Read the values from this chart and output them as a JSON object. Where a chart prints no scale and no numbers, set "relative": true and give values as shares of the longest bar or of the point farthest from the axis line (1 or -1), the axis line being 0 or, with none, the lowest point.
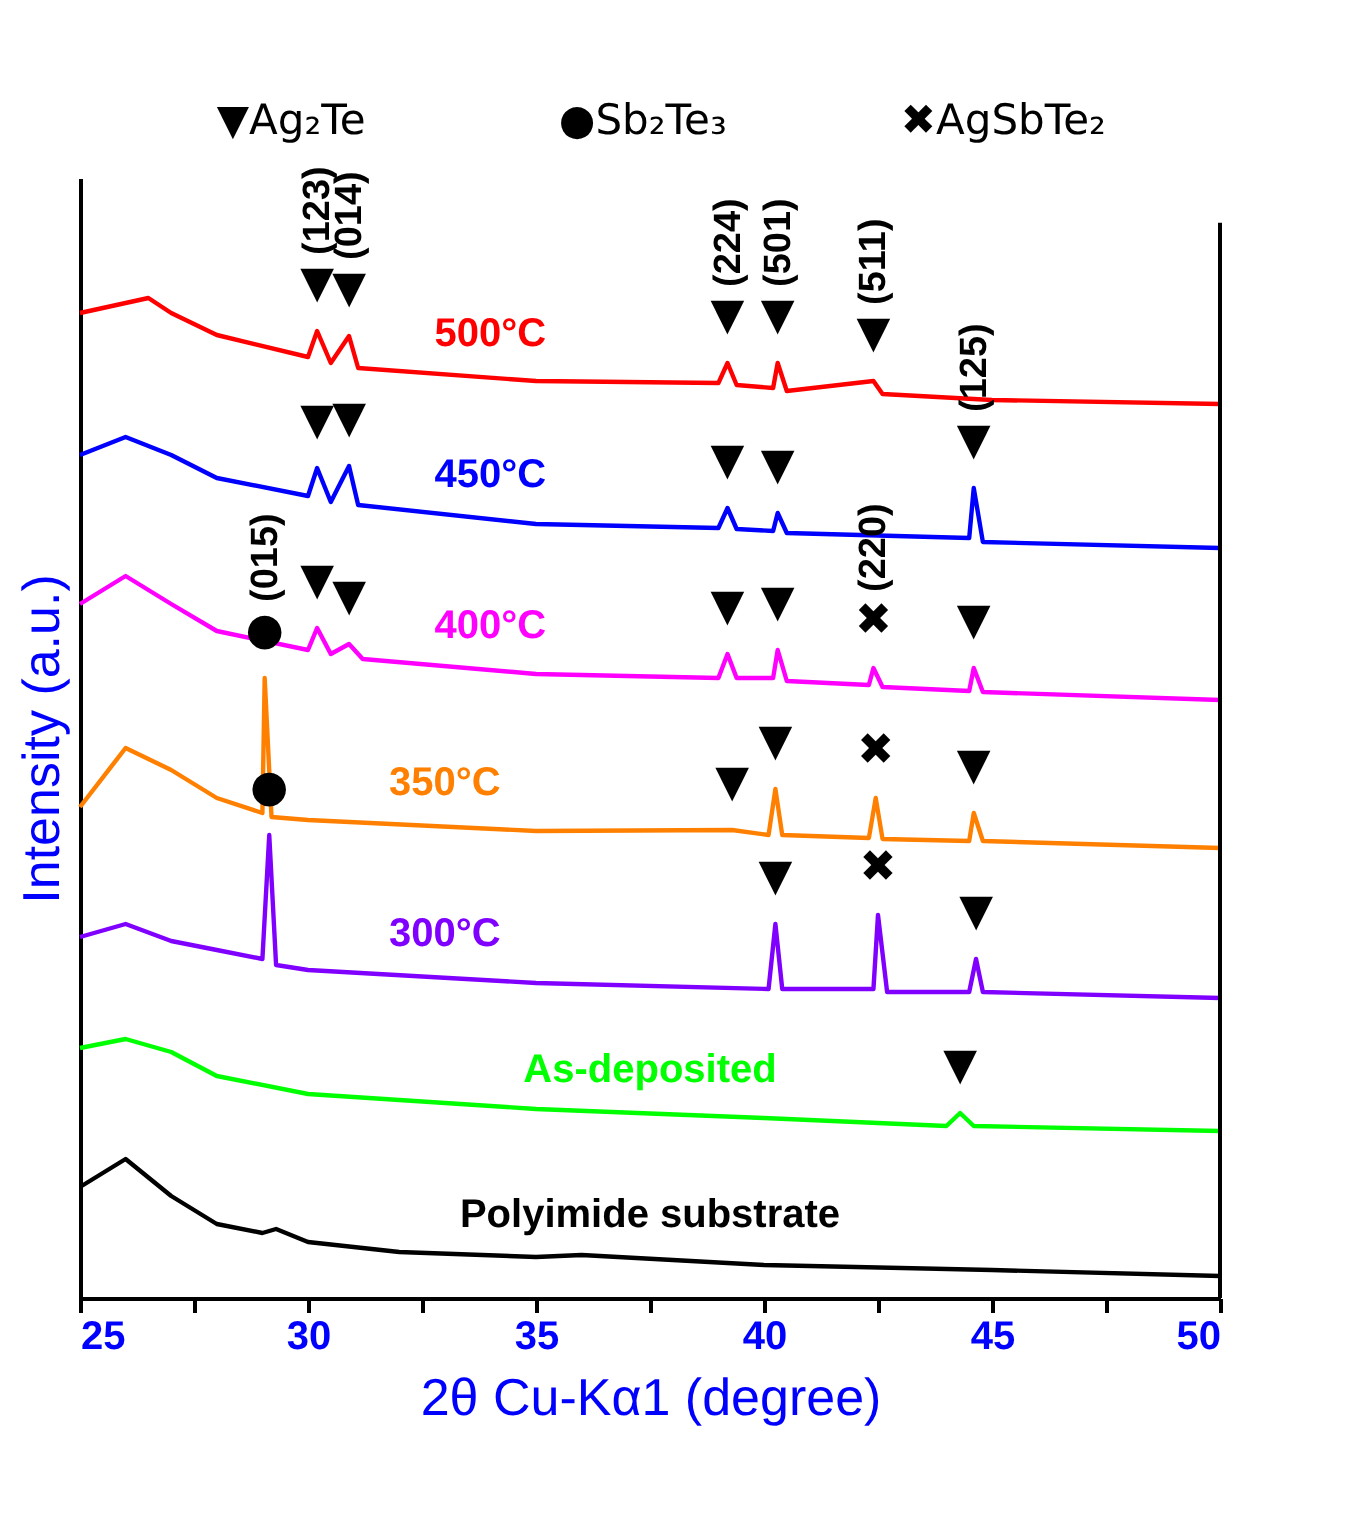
{
  "chart_data": {
    "type": "line",
    "relative": true,
    "xlabel": "2θ Cu-Kα1 (degree)",
    "ylabel": "Intensity (a.u.)",
    "xlim": [
      25,
      50
    ],
    "xticks": [
      25,
      {
        "value": 27.5,
        "label": null
      },
      30,
      {
        "value": 32.5,
        "label": null
      },
      35,
      {
        "value": 37.5,
        "label": null
      },
      40,
      {
        "value": 42.5,
        "label": null
      },
      45,
      {
        "value": 47.5,
        "label": null
      },
      50
    ],
    "series": [
      {
        "name": "500°C",
        "color": "#ff0000",
        "x": [
          25,
          26.5,
          27,
          28,
          30,
          30.2,
          30.5,
          30.9,
          31.1,
          35,
          39.0,
          39.2,
          39.4,
          40.2,
          40.3,
          40.5,
          42.4,
          42.6,
          45,
          50
        ],
        "values": [
          0.985,
          1,
          0.985,
          0.963,
          0.941,
          0.967,
          0.935,
          0.962,
          0.93,
          0.917,
          0.915,
          0.935,
          0.913,
          0.91,
          0.935,
          0.907,
          0.917,
          0.904,
          0.898,
          0.894
        ]
      },
      {
        "name": "450°C",
        "color": "#0000ff",
        "x": [
          25,
          26,
          27,
          28,
          30,
          30.2,
          30.5,
          30.9,
          31.1,
          35,
          39.0,
          39.2,
          39.4,
          40.2,
          40.3,
          40.5,
          44.5,
          44.6,
          44.8,
          50
        ],
        "values": [
          0.843,
          0.861,
          0.843,
          0.82,
          0.802,
          0.83,
          0.796,
          0.832,
          0.793,
          0.774,
          0.77,
          0.79,
          0.769,
          0.767,
          0.785,
          0.765,
          0.76,
          0.81,
          0.756,
          0.75
        ]
      },
      {
        "name": "400°C",
        "color": "#ff00ff",
        "x": [
          25,
          26,
          27,
          28,
          30,
          30.2,
          30.5,
          30.9,
          31.2,
          35,
          39.0,
          39.2,
          39.4,
          40.2,
          40.3,
          40.5,
          42.3,
          42.4,
          42.6,
          44.5,
          44.6,
          44.8,
          50
        ],
        "values": [
          0.694,
          0.722,
          0.694,
          0.667,
          0.648,
          0.67,
          0.644,
          0.654,
          0.639,
          0.624,
          0.62,
          0.644,
          0.62,
          0.62,
          0.648,
          0.617,
          0.613,
          0.63,
          0.611,
          0.607,
          0.63,
          0.606,
          0.598
        ]
      },
      {
        "name": "350°C",
        "color": "#ff8000",
        "x": [
          25,
          26,
          27,
          28,
          29,
          29.05,
          29.2,
          30,
          35,
          39.3,
          40.1,
          40.25,
          40.4,
          42.3,
          42.45,
          42.6,
          44.5,
          44.6,
          44.8,
          50
        ],
        "values": [
          0.491,
          0.55,
          0.528,
          0.5,
          0.485,
          0.62,
          0.481,
          0.478,
          0.467,
          0.468,
          0.463,
          0.509,
          0.463,
          0.46,
          0.5,
          0.459,
          0.457,
          0.485,
          0.457,
          0.45
        ]
      },
      {
        "name": "300°C",
        "color": "#8000ff",
        "x": [
          25,
          26,
          27,
          28,
          29,
          29.15,
          29.3,
          30,
          35,
          40.1,
          40.25,
          40.4,
          42.4,
          42.5,
          42.7,
          44.5,
          44.65,
          44.8,
          50
        ],
        "values": [
          0.361,
          0.374,
          0.357,
          0.348,
          0.339,
          0.463,
          0.333,
          0.328,
          0.315,
          0.309,
          0.374,
          0.309,
          0.309,
          0.383,
          0.306,
          0.306,
          0.339,
          0.306,
          0.3
        ]
      },
      {
        "name": "As-deposited",
        "color": "#00ff00",
        "x": [
          25,
          26,
          27,
          28,
          30,
          35,
          40,
          44,
          44.3,
          44.6,
          50
        ],
        "values": [
          0.25,
          0.259,
          0.246,
          0.222,
          0.204,
          0.189,
          0.18,
          0.172,
          0.185,
          0.172,
          0.167
        ]
      },
      {
        "name": "Polyimide substrate",
        "color": "#000000",
        "x": [
          25,
          26,
          27,
          28,
          29,
          29.3,
          30,
          32,
          35,
          36,
          40,
          45,
          50
        ],
        "values": [
          0.111,
          0.139,
          0.102,
          0.074,
          0.065,
          0.069,
          0.056,
          0.046,
          0.041,
          0.043,
          0.033,
          0.028,
          0.022
        ]
      }
    ],
    "annotations": [
      "▼Ag₂Te",
      "●Sb₂Te₃",
      "✖AgSbTe₂",
      {
        "text": "▼",
        "x": 30.2,
        "y": 0.967
      },
      {
        "text": "▼",
        "x": 30.9,
        "y": 0.962
      },
      {
        "text": "▼",
        "x": 39.2,
        "y": 0.935
      },
      {
        "text": "▼",
        "x": 40.3,
        "y": 0.935
      },
      {
        "text": "▼",
        "x": 42.4,
        "y": 0.917
      },
      {
        "text": "(123)",
        "x": 30.2,
        "y": 0.967
      },
      {
        "text": "(014)",
        "x": 30.9,
        "y": 0.962
      },
      {
        "text": "(224)",
        "x": 39.2,
        "y": 0.935
      },
      {
        "text": "(501)",
        "x": 40.3,
        "y": 0.935
      },
      {
        "text": "(511)",
        "x": 42.4,
        "y": 0.917
      },
      {
        "text": "(125)",
        "x": 44.6,
        "y": 0.81
      },
      {
        "text": "▼",
        "x": 30.2,
        "y": 0.83
      },
      {
        "text": "▼",
        "x": 30.9,
        "y": 0.832
      },
      {
        "text": "▼",
        "x": 39.2,
        "y": 0.79
      },
      {
        "text": "▼",
        "x": 40.3,
        "y": 0.785
      },
      {
        "text": "▼",
        "x": 44.6,
        "y": 0.81
      },
      {
        "text": "▼",
        "x": 30.2,
        "y": 0.67
      },
      {
        "text": "▼",
        "x": 30.9,
        "y": 0.654
      },
      {
        "text": "▼",
        "x": 39.2,
        "y": 0.644
      },
      {
        "text": "▼",
        "x": 40.3,
        "y": 0.648
      },
      {
        "text": "✖",
        "x": 42.4,
        "y": 0.63
      },
      {
        "text": "▼",
        "x": 44.6,
        "y": 0.63
      },
      {
        "text": "(015)",
        "x": 29.05,
        "y": 0.62
      },
      {
        "text": "(220)",
        "x": 42.4,
        "y": 0.63
      },
      {
        "text": "●",
        "x": 29.05,
        "y": 0.62
      },
      {
        "text": "▼",
        "x": 39.3,
        "y": 0.468
      },
      {
        "text": "▼",
        "x": 40.25,
        "y": 0.509
      },
      {
        "text": "✖",
        "x": 42.45,
        "y": 0.5
      },
      {
        "text": "▼",
        "x": 44.6,
        "y": 0.485
      },
      {
        "text": "●",
        "x": 29.15,
        "y": 0.463
      },
      {
        "text": "▼",
        "x": 40.25,
        "y": 0.374
      },
      {
        "text": "✖",
        "x": 42.5,
        "y": 0.383
      },
      {
        "text": "▼",
        "x": 44.65,
        "y": 0.339
      },
      {
        "text": "▼",
        "x": 44.3,
        "y": 0.185
      }
    ]
  }
}
